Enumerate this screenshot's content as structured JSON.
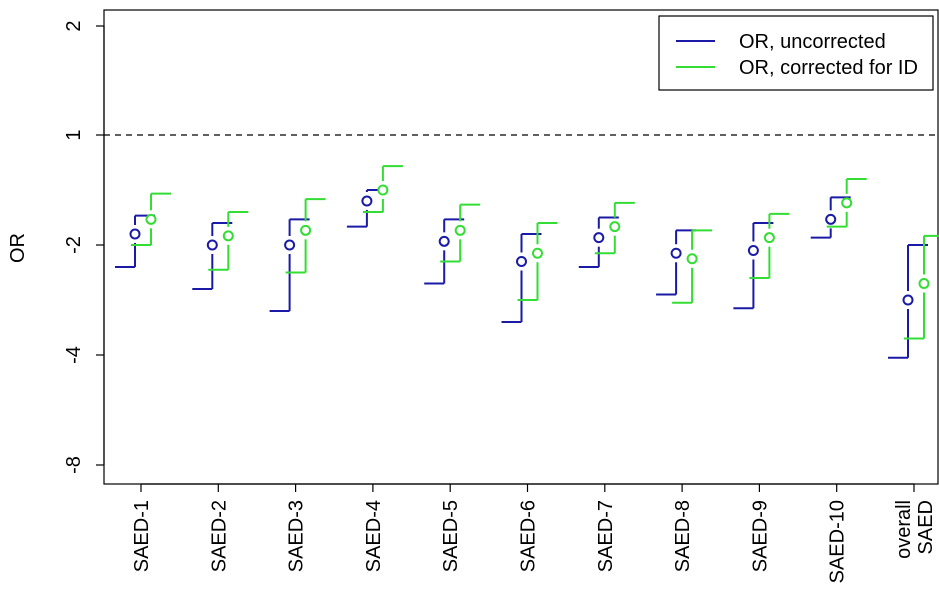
{
  "chart_data": {
    "type": "scatter",
    "ylabel": "OR",
    "y_ticks": [
      {
        "label": "2",
        "value": 2
      },
      {
        "label": "1",
        "value": 1
      },
      {
        "label": "-2",
        "value": -2
      },
      {
        "label": "-4",
        "value": -4
      },
      {
        "label": "-8",
        "value": -8
      }
    ],
    "ylim": [
      -8,
      2
    ],
    "reference_line": 1,
    "categories": [
      [
        "SAED-1"
      ],
      [
        "SAED-2"
      ],
      [
        "SAED-3"
      ],
      [
        "SAED-4"
      ],
      [
        "SAED-5"
      ],
      [
        "SAED-6"
      ],
      [
        "SAED-7"
      ],
      [
        "SAED-8"
      ],
      [
        "SAED-9"
      ],
      [
        "SAED-10"
      ],
      [
        "overall",
        "SAED"
      ]
    ],
    "series": [
      {
        "name": "OR, uncorrected",
        "color": "#1a1aa6",
        "points": [
          {
            "est": -1.7,
            "lo": -2.4,
            "hi": -1.2
          },
          {
            "est": -2.0,
            "lo": -2.8,
            "hi": -1.4
          },
          {
            "est": -2.0,
            "lo": -3.2,
            "hi": -1.3
          },
          {
            "est": -0.8,
            "lo": -1.5,
            "hi": -0.5
          },
          {
            "est": -1.9,
            "lo": -2.7,
            "hi": -1.3
          },
          {
            "est": -2.3,
            "lo": -3.4,
            "hi": -1.7
          },
          {
            "est": -1.8,
            "lo": -2.4,
            "hi": -1.25
          },
          {
            "est": -2.15,
            "lo": -2.9,
            "hi": -1.6
          },
          {
            "est": -2.1,
            "lo": -3.15,
            "hi": -1.4
          },
          {
            "est": -1.3,
            "lo": -1.8,
            "hi": -0.7
          },
          {
            "est": -3.0,
            "lo": -4.1,
            "hi": -2.0
          }
        ]
      },
      {
        "name": "OR, corrected for ID",
        "color": "#33dd33",
        "points": [
          {
            "est": -1.3,
            "lo": -2.0,
            "hi": -0.6
          },
          {
            "est": -1.75,
            "lo": -2.45,
            "hi": -1.1
          },
          {
            "est": -1.6,
            "lo": -2.5,
            "hi": -0.75
          },
          {
            "est": -0.5,
            "lo": -1.1,
            "hi": 0.15
          },
          {
            "est": -1.6,
            "lo": -2.3,
            "hi": -0.9
          },
          {
            "est": -2.15,
            "lo": -3.0,
            "hi": -1.4
          },
          {
            "est": -1.5,
            "lo": -2.15,
            "hi": -0.85
          },
          {
            "est": -2.25,
            "lo": -3.05,
            "hi": -1.6
          },
          {
            "est": -1.8,
            "lo": -2.6,
            "hi": -1.15
          },
          {
            "est": -0.85,
            "lo": -1.5,
            "hi": -0.2
          },
          {
            "est": -2.7,
            "lo": -3.7,
            "hi": -1.75
          }
        ]
      }
    ],
    "legend": {
      "position": "top-right",
      "box": true
    }
  }
}
